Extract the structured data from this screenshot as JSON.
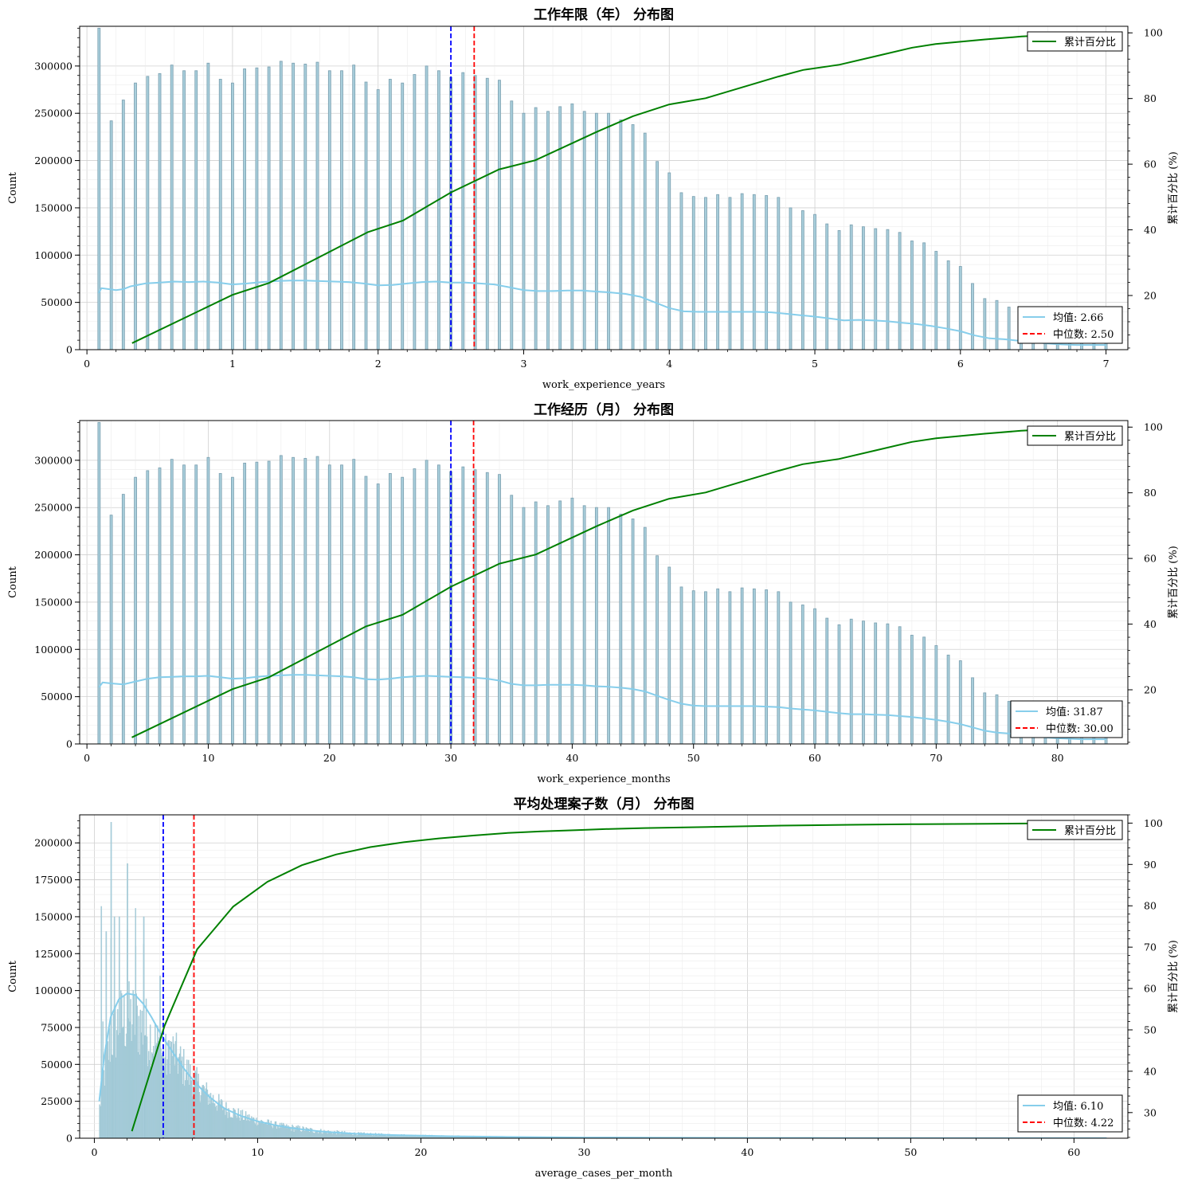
{
  "colors": {
    "hist_fill": "#a9cfdc",
    "hist_edge": "#7fa3b3",
    "kde": "#87ceeb",
    "mean_line": "#0000ff",
    "median_line": "#ff0000",
    "cumulative": "#008000",
    "grid": "#d0d0d0"
  },
  "chart_data": [
    {
      "type": "bar",
      "title": "工作年限（年） 分布图",
      "xlabel": "work_experience_years",
      "ylabel": "Count",
      "y2label": "累计百分比 (%)",
      "xlim": [
        -0.05,
        7.15
      ],
      "ylim": [
        0,
        342000
      ],
      "y2lim": [
        3.5,
        102
      ],
      "xticks": [
        0,
        1,
        2,
        3,
        4,
        5,
        6,
        7
      ],
      "yticks": [
        0,
        50000,
        100000,
        150000,
        200000,
        250000,
        300000
      ],
      "y2ticks": [
        20,
        40,
        60,
        80,
        100
      ],
      "grid": true,
      "bin_width": 0.016,
      "hist": {
        "x": [
          0.083,
          0.167,
          0.25,
          0.333,
          0.417,
          0.5,
          0.583,
          0.667,
          0.75,
          0.833,
          0.917,
          1.0,
          1.083,
          1.167,
          1.25,
          1.333,
          1.417,
          1.5,
          1.583,
          1.667,
          1.75,
          1.833,
          1.917,
          2.0,
          2.083,
          2.167,
          2.25,
          2.333,
          2.417,
          2.5,
          2.583,
          2.667,
          2.75,
          2.833,
          2.917,
          3.0,
          3.083,
          3.167,
          3.25,
          3.333,
          3.417,
          3.5,
          3.583,
          3.667,
          3.75,
          3.833,
          3.917,
          4.0,
          4.083,
          4.167,
          4.25,
          4.333,
          4.417,
          4.5,
          4.583,
          4.667,
          4.75,
          4.833,
          4.917,
          5.0,
          5.083,
          5.167,
          5.25,
          5.333,
          5.417,
          5.5,
          5.583,
          5.667,
          5.75,
          5.833,
          5.917,
          6.0,
          6.083,
          6.167,
          6.25,
          6.333,
          6.417,
          6.5,
          6.583,
          6.667,
          6.75,
          6.833,
          6.917,
          7.0
        ],
        "counts": [
          340000,
          242000,
          264000,
          282000,
          289000,
          292000,
          301000,
          295000,
          295000,
          303000,
          286000,
          282000,
          297000,
          298000,
          299000,
          305000,
          303000,
          302000,
          304000,
          295000,
          295000,
          301000,
          283000,
          275000,
          286000,
          282000,
          291000,
          300000,
          295000,
          288000,
          293000,
          290000,
          287000,
          285000,
          263000,
          250000,
          256000,
          252000,
          257000,
          260000,
          252000,
          250000,
          250000,
          243000,
          238000,
          229000,
          199000,
          187000,
          166000,
          162000,
          161000,
          164000,
          161000,
          165000,
          164000,
          163000,
          161000,
          150000,
          147000,
          143000,
          133000,
          126000,
          132000,
          130000,
          128000,
          127000,
          124000,
          115000,
          113000,
          104000,
          94000,
          88000,
          70000,
          54000,
          52000,
          45000,
          40000,
          34000,
          32000,
          30000,
          28000,
          26000,
          24000,
          22000
        ]
      },
      "kde": {
        "x": [
          0.08,
          0.1,
          0.15,
          0.2,
          0.25,
          0.3,
          0.4,
          0.5,
          0.6,
          0.7,
          0.8,
          0.9,
          1.0,
          1.1,
          1.2,
          1.3,
          1.4,
          1.5,
          1.6,
          1.7,
          1.8,
          1.9,
          2.0,
          2.1,
          2.2,
          2.3,
          2.4,
          2.5,
          2.6,
          2.7,
          2.8,
          2.9,
          3.0,
          3.1,
          3.2,
          3.3,
          3.4,
          3.5,
          3.6,
          3.7,
          3.8,
          3.9,
          4.0,
          4.1,
          4.2,
          4.3,
          4.4,
          4.5,
          4.6,
          4.7,
          4.8,
          4.9,
          5.0,
          5.1,
          5.2,
          5.3,
          5.4,
          5.5,
          5.6,
          5.7,
          5.8,
          5.9,
          6.0,
          6.1,
          6.2,
          6.3,
          6.4,
          6.5,
          6.6,
          6.7,
          6.8,
          6.9,
          7.0
        ],
        "y": [
          60000,
          65000,
          64000,
          63000,
          64000,
          67000,
          70000,
          71000,
          72000,
          71500,
          72000,
          71000,
          69000,
          70000,
          71500,
          72500,
          73000,
          73000,
          72500,
          72000,
          71500,
          70000,
          68000,
          68500,
          70000,
          71500,
          72000,
          71000,
          71000,
          70000,
          69000,
          66000,
          63000,
          62000,
          62000,
          62500,
          62500,
          61500,
          60500,
          59000,
          56000,
          50000,
          44000,
          40500,
          40000,
          40000,
          40000,
          40000,
          40000,
          39500,
          38000,
          36500,
          35000,
          33000,
          31000,
          31500,
          31000,
          30000,
          28500,
          27000,
          25000,
          22500,
          19500,
          15000,
          12000,
          11000,
          9500,
          8000,
          6500,
          5500,
          5000,
          5000,
          5000
        ]
      },
      "cumulative": {
        "x": [
          0.31,
          1.0,
          1.25,
          1.93,
          2.17,
          2.5,
          2.83,
          3.08,
          3.5,
          3.75,
          4.0,
          4.25,
          4.5,
          4.75,
          4.92,
          5.17,
          5.42,
          5.67,
          5.83,
          6.17,
          6.42,
          6.75,
          7.0
        ],
        "y": [
          5.5,
          20.2,
          23.8,
          39.3,
          42.8,
          51.4,
          58.4,
          61.2,
          69.8,
          74.6,
          78.2,
          80.1,
          83.4,
          86.7,
          88.7,
          90.3,
          92.9,
          95.5,
          96.6,
          98.0,
          98.9,
          99.6,
          100.0
        ]
      },
      "mean": 2.66,
      "median": 2.5,
      "legend_cum_label": "累计百分比",
      "legend_mean_label": "均值: 2.66",
      "legend_median_label": "中位数: 2.50"
    },
    {
      "type": "bar",
      "title": "工作经历（月） 分布图",
      "xlabel": "work_experience_months",
      "ylabel": "Count",
      "y2label": "累计百分比 (%)",
      "xlim": [
        -0.6,
        85.8
      ],
      "ylim": [
        0,
        342000
      ],
      "y2lim": [
        3.5,
        102
      ],
      "xticks": [
        0,
        10,
        20,
        30,
        40,
        50,
        60,
        70,
        80
      ],
      "yticks": [
        0,
        50000,
        100000,
        150000,
        200000,
        250000,
        300000
      ],
      "y2ticks": [
        20,
        40,
        60,
        80,
        100
      ],
      "grid": true,
      "bin_width": 0.19,
      "hist": {
        "x": [
          1,
          2,
          3,
          4,
          5,
          6,
          7,
          8,
          9,
          10,
          11,
          12,
          13,
          14,
          15,
          16,
          17,
          18,
          19,
          20,
          21,
          22,
          23,
          24,
          25,
          26,
          27,
          28,
          29,
          30,
          31,
          32,
          33,
          34,
          35,
          36,
          37,
          38,
          39,
          40,
          41,
          42,
          43,
          44,
          45,
          46,
          47,
          48,
          49,
          50,
          51,
          52,
          53,
          54,
          55,
          56,
          57,
          58,
          59,
          60,
          61,
          62,
          63,
          64,
          65,
          66,
          67,
          68,
          69,
          70,
          71,
          72,
          73,
          74,
          75,
          76,
          77,
          78,
          79,
          80,
          81,
          82,
          83,
          84
        ],
        "counts": [
          340000,
          242000,
          264000,
          282000,
          289000,
          292000,
          301000,
          295000,
          295000,
          303000,
          286000,
          282000,
          297000,
          298000,
          299000,
          305000,
          303000,
          302000,
          304000,
          295000,
          295000,
          301000,
          283000,
          275000,
          286000,
          282000,
          291000,
          300000,
          295000,
          288000,
          293000,
          290000,
          287000,
          285000,
          263000,
          250000,
          256000,
          252000,
          257000,
          260000,
          252000,
          250000,
          250000,
          243000,
          238000,
          229000,
          199000,
          187000,
          166000,
          162000,
          161000,
          164000,
          161000,
          165000,
          164000,
          163000,
          161000,
          150000,
          147000,
          143000,
          133000,
          126000,
          132000,
          130000,
          128000,
          127000,
          124000,
          115000,
          113000,
          104000,
          94000,
          88000,
          70000,
          54000,
          52000,
          45000,
          40000,
          34000,
          32000,
          30000,
          28000,
          26000,
          24000,
          22000
        ]
      },
      "kde": {
        "x": [
          1.0,
          1.3,
          2,
          3,
          4,
          5,
          6,
          7,
          8,
          9,
          10,
          11,
          12,
          13,
          14,
          15,
          16,
          17,
          18,
          19,
          20,
          21,
          22,
          23,
          24,
          25,
          26,
          27,
          28,
          29,
          30,
          31,
          32,
          33,
          34,
          35,
          36,
          37,
          38,
          39,
          40,
          41,
          42,
          43,
          44,
          45,
          46,
          47,
          48,
          49,
          50,
          51,
          52,
          53,
          54,
          55,
          56,
          57,
          58,
          59,
          60,
          61,
          62,
          63,
          64,
          65,
          66,
          67,
          68,
          69,
          70,
          71,
          72,
          73,
          74,
          75,
          76,
          77,
          78,
          79,
          80,
          81,
          82,
          83,
          84
        ],
        "y": [
          60000,
          65000,
          64000,
          63000,
          66000,
          69000,
          70500,
          71000,
          71500,
          71500,
          72000,
          70500,
          69000,
          69500,
          71000,
          72000,
          72500,
          73000,
          73000,
          72500,
          72000,
          71500,
          70500,
          68500,
          68000,
          69000,
          70500,
          71500,
          72000,
          71500,
          71000,
          70500,
          70000,
          69000,
          67000,
          63500,
          62000,
          62000,
          62500,
          62500,
          62500,
          62000,
          61000,
          60500,
          59500,
          58000,
          55500,
          51000,
          46500,
          42500,
          40500,
          40000,
          40000,
          40000,
          40000,
          40000,
          39500,
          39000,
          37500,
          36500,
          35500,
          34000,
          32500,
          31500,
          31500,
          31000,
          30500,
          29500,
          28500,
          27000,
          25500,
          23500,
          21000,
          17500,
          14000,
          12000,
          11000,
          10000,
          8500,
          7000,
          6000,
          5500,
          5000,
          5000,
          5000
        ]
      },
      "cumulative": {
        "x": [
          3.7,
          12.0,
          15.0,
          23.0,
          26.0,
          30.0,
          34.0,
          37.0,
          42.0,
          45.0,
          48.0,
          51.0,
          54.0,
          57.0,
          59.0,
          62.0,
          65.0,
          68.0,
          70.0,
          74.0,
          77.0,
          81.0,
          84.0
        ],
        "y": [
          5.5,
          20.2,
          23.8,
          39.3,
          42.8,
          51.4,
          58.4,
          61.2,
          69.8,
          74.6,
          78.2,
          80.1,
          83.4,
          86.7,
          88.7,
          90.3,
          92.9,
          95.5,
          96.6,
          98.0,
          98.9,
          99.6,
          100.0
        ]
      },
      "mean": 31.87,
      "median": 30.0,
      "legend_cum_label": "累计百分比",
      "legend_mean_label": "均值: 31.87",
      "legend_median_label": "中位数: 30.00"
    },
    {
      "type": "bar",
      "title": "平均处理案子数（月） 分布图",
      "xlabel": "average_cases_per_month",
      "ylabel": "Count",
      "y2label": "累计百分比 (%)",
      "xlim": [
        -0.9,
        63.3
      ],
      "ylim": [
        0,
        219000
      ],
      "y2lim": [
        23.8,
        102
      ],
      "xticks": [
        0,
        10,
        20,
        30,
        40,
        50,
        60
      ],
      "yticks": [
        0,
        25000,
        50000,
        75000,
        100000,
        125000,
        150000,
        175000,
        200000
      ],
      "y2ticks": [
        30,
        40,
        50,
        60,
        70,
        80,
        90,
        100
      ],
      "grid": true,
      "hist_generated": "dense histogram bars rendered procedurally by the script",
      "kde": {
        "x": [
          0.3,
          0.6,
          1.0,
          1.5,
          2.0,
          2.5,
          3.0,
          3.5,
          4.0,
          4.5,
          5.0,
          5.5,
          6.0,
          6.5,
          7.0,
          7.5,
          8.0,
          9.0,
          10.0,
          11.0,
          12.0,
          13.0,
          14.0,
          15.0,
          16.0,
          18.0,
          20.0,
          22.0,
          25.0,
          30.0,
          35.0,
          40.0,
          45.0,
          50.0,
          55.0,
          60.0,
          62.0
        ],
        "y": [
          25000,
          55000,
          82000,
          94000,
          98000,
          97000,
          91000,
          82000,
          72000,
          63000,
          55000,
          47000,
          40000,
          34000,
          28500,
          24000,
          20000,
          15000,
          11500,
          9000,
          7000,
          5600,
          4500,
          3700,
          3000,
          2200,
          1700,
          1300,
          900,
          500,
          300,
          200,
          150,
          100,
          80,
          60,
          50
        ]
      },
      "cumulative": {
        "x": [
          2.3,
          4.3,
          6.3,
          8.5,
          10.6,
          12.7,
          14.8,
          16.9,
          19.0,
          21.1,
          23.2,
          25.3,
          27.4,
          29.5,
          31.6,
          33.7,
          37.9,
          42.1,
          46.3,
          50.5,
          54.7,
          58.9,
          62.0
        ],
        "y": [
          25.5,
          51.0,
          69.5,
          79.8,
          85.8,
          89.8,
          92.4,
          94.2,
          95.4,
          96.3,
          97.0,
          97.6,
          98.0,
          98.3,
          98.6,
          98.8,
          99.1,
          99.4,
          99.6,
          99.75,
          99.85,
          99.95,
          100.0
        ]
      },
      "mean": 6.1,
      "median": 4.22,
      "legend_cum_label": "累计百分比",
      "legend_mean_label": "均值: 6.10",
      "legend_median_label": "中位数: 4.22"
    }
  ]
}
